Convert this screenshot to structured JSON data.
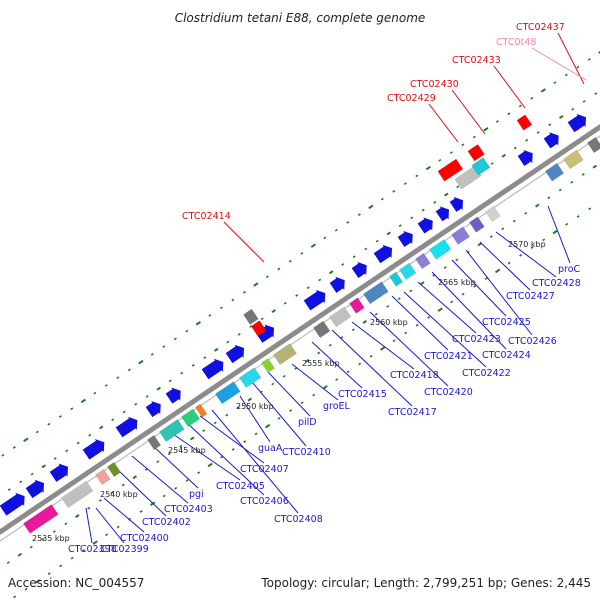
{
  "title": "Clostridium tetani E88, complete genome",
  "footer": {
    "accession": "Accession: NC_004557",
    "summary": "Topology: circular; Length: 2,799,251 bp; Genes: 2,445"
  },
  "colors": {
    "background": "#ffffff",
    "backbone": "#8c8c8c",
    "gene_blue": "#1010e0",
    "label_blue": "#1a1acc",
    "label_red": "#dd1111",
    "label_pink": "#f08aa8",
    "tick_green": "#1f7a1f"
  },
  "kbp_ticks": [
    {
      "label": "2535 kbp",
      "kbp": 2535
    },
    {
      "label": "2540 kbp",
      "kbp": 2540
    },
    {
      "label": "2545 kbp",
      "kbp": 2545
    },
    {
      "label": "2550 kbp",
      "kbp": 2550
    },
    {
      "label": "2555 kbp",
      "kbp": 2555
    },
    {
      "label": "2560 kbp",
      "kbp": 2560
    },
    {
      "label": "2565 kbp",
      "kbp": 2565
    },
    {
      "label": "2570 kbp",
      "kbp": 2570
    }
  ],
  "gene_labels": [
    {
      "text": "CTC02398",
      "color": "blue"
    },
    {
      "text": "CTC02399",
      "color": "blue"
    },
    {
      "text": "CTC02400",
      "color": "blue"
    },
    {
      "text": "CTC02402",
      "color": "blue"
    },
    {
      "text": "CTC02403",
      "color": "blue"
    },
    {
      "text": "pgi",
      "color": "blue"
    },
    {
      "text": "CTC02405",
      "color": "blue"
    },
    {
      "text": "CTC02406",
      "color": "blue"
    },
    {
      "text": "CTC02407",
      "color": "blue"
    },
    {
      "text": "CTC02408",
      "color": "blue"
    },
    {
      "text": "guaA",
      "color": "blue"
    },
    {
      "text": "CTC02410",
      "color": "blue"
    },
    {
      "text": "pilD",
      "color": "blue"
    },
    {
      "text": "groEL",
      "color": "blue"
    },
    {
      "text": "CTC02415",
      "color": "blue"
    },
    {
      "text": "CTC02417",
      "color": "blue"
    },
    {
      "text": "CTC02418",
      "color": "blue"
    },
    {
      "text": "CTC02420",
      "color": "blue"
    },
    {
      "text": "CTC02421",
      "color": "blue"
    },
    {
      "text": "CTC02422",
      "color": "blue"
    },
    {
      "text": "CTC02423",
      "color": "blue"
    },
    {
      "text": "CTC02424",
      "color": "blue"
    },
    {
      "text": "CTC02425",
      "color": "blue"
    },
    {
      "text": "CTC02426",
      "color": "blue"
    },
    {
      "text": "CTC02427",
      "color": "blue"
    },
    {
      "text": "CTC02428",
      "color": "blue"
    },
    {
      "text": "proC",
      "color": "blue"
    },
    {
      "text": "CTC02414",
      "color": "red"
    },
    {
      "text": "CTC02429",
      "color": "red"
    },
    {
      "text": "CTC02430",
      "color": "red"
    },
    {
      "text": "CTC02433",
      "color": "red"
    },
    {
      "text": "CTC02437",
      "color": "red"
    },
    {
      "text": "CTC0t48",
      "color": "pink"
    }
  ]
}
